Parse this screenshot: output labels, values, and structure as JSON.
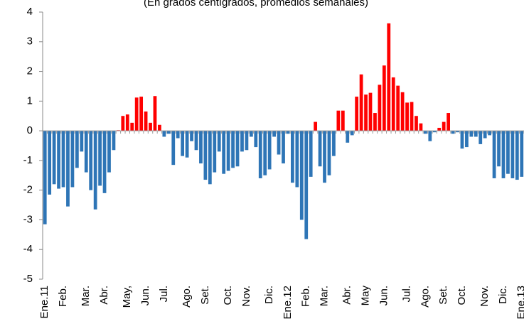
{
  "chart_data": {
    "type": "bar",
    "subtitle": "(En grados centígrados, promedios semanales)",
    "categories": [
      "Ene.11",
      null,
      null,
      null,
      "Feb.",
      null,
      null,
      null,
      null,
      "Mar.",
      null,
      null,
      null,
      "Abr.",
      null,
      null,
      null,
      null,
      "May,",
      null,
      null,
      null,
      "Jun.",
      null,
      null,
      null,
      "Jul.",
      null,
      null,
      null,
      null,
      "Ago.",
      null,
      null,
      null,
      "Set.",
      null,
      null,
      null,
      null,
      "Oct.",
      null,
      null,
      null,
      "Nov.",
      null,
      null,
      null,
      null,
      "Dic.",
      null,
      null,
      null,
      "Ene.12",
      null,
      null,
      null,
      "Feb.",
      null,
      null,
      null,
      "Mar.",
      null,
      null,
      null,
      null,
      "Abr.",
      null,
      null,
      null,
      "May",
      null,
      null,
      null,
      "Jun.",
      null,
      null,
      null,
      null,
      "Jul.",
      null,
      null,
      null,
      "Ago.",
      null,
      null,
      null,
      "Set.",
      null,
      null,
      null,
      "Oct.",
      null,
      null,
      null,
      null,
      "Nov.",
      null,
      null,
      null,
      "Dic.",
      null,
      null,
      null,
      "Ene.13"
    ],
    "values": [
      -3.15,
      -2.15,
      -1.8,
      -1.95,
      -1.9,
      -2.55,
      -1.9,
      -1.25,
      -0.7,
      -1.4,
      -2.0,
      -2.65,
      -1.85,
      -2.1,
      -1.4,
      -0.65,
      0.02,
      0.5,
      0.55,
      0.27,
      1.12,
      1.15,
      0.65,
      0.27,
      1.17,
      0.2,
      -0.2,
      -0.1,
      -1.15,
      -0.25,
      -0.85,
      -0.9,
      -0.35,
      -0.65,
      -1.1,
      -1.65,
      -1.8,
      -1.4,
      -0.7,
      -1.45,
      -1.35,
      -1.25,
      -1.2,
      -0.7,
      -0.65,
      -0.2,
      -0.55,
      -1.6,
      -1.5,
      -1.3,
      -0.2,
      -0.8,
      -1.1,
      -0.1,
      -1.75,
      -1.9,
      -3.0,
      -3.65,
      -1.55,
      0.3,
      -1.2,
      -1.75,
      -1.5,
      -0.85,
      0.68,
      0.68,
      -0.4,
      -0.15,
      1.15,
      1.9,
      1.22,
      1.28,
      0.6,
      1.55,
      2.2,
      3.62,
      1.8,
      1.52,
      1.3,
      0.95,
      0.97,
      0.5,
      0.25,
      -0.1,
      -0.35,
      -0.05,
      0.1,
      0.3,
      0.6,
      -0.1,
      -0.05,
      -0.6,
      -0.55,
      -0.2,
      -0.2,
      -0.45,
      -0.25,
      -0.15,
      -1.6,
      -1.2,
      -1.6,
      -1.45,
      -1.6,
      -1.65,
      -1.55
    ],
    "positive_color": "#ff0000",
    "negative_color": "#2e75b6",
    "ylim": [
      -5,
      4
    ],
    "yticks": [
      -5,
      -4,
      -3,
      -2,
      -1,
      0,
      1,
      2,
      3,
      4
    ]
  }
}
